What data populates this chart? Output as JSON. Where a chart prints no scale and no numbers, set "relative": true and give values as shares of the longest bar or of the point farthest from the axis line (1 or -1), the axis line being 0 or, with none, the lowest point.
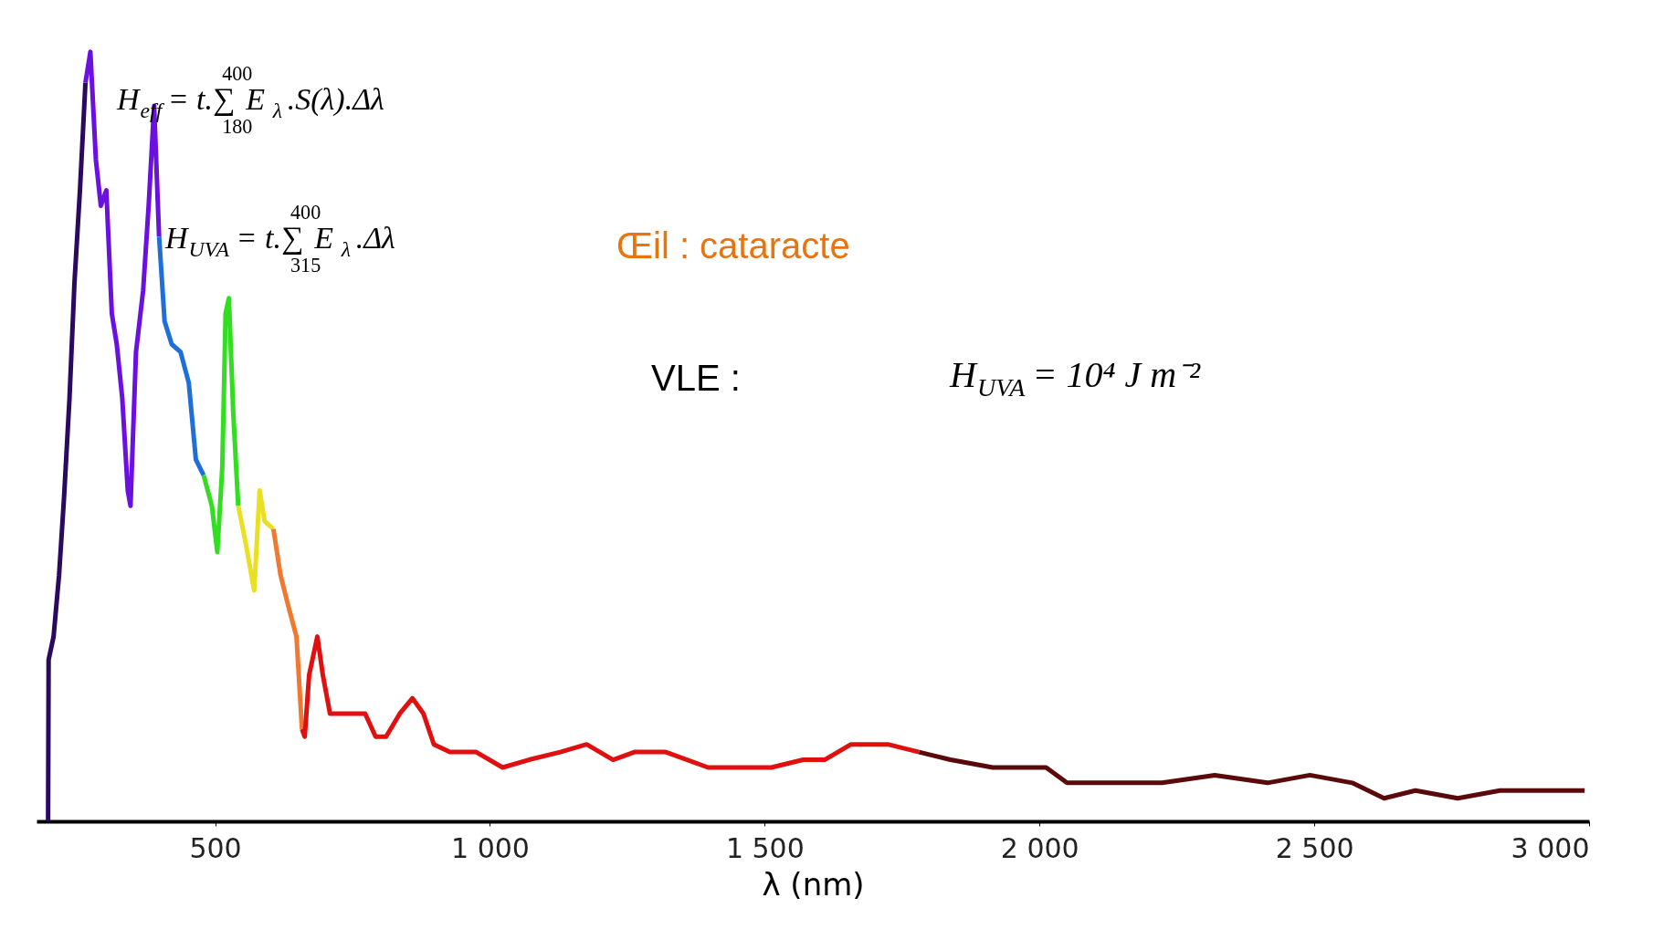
{
  "chart_data": {
    "type": "line",
    "relative": true,
    "xlabel": "λ (nm)",
    "grid": false,
    "xlim": [
      175,
      3000
    ],
    "xticks": [
      500,
      {
        "value": 1000,
        "label": "1 000"
      },
      {
        "value": 1500,
        "label": "1 500"
      },
      {
        "value": 2000,
        "label": "2 000"
      },
      {
        "value": 2500,
        "label": "2 500"
      },
      {
        "value": 3000,
        "label": "3 000"
      }
    ],
    "annotations": [
      "H$_{eff}$ = t.∑$_{180}$$^{400}$ E$_{λ}$.S(λ).Δλ",
      "H$_{UVA}$ = t.∑$_{315}$$^{400}$ E$_{λ}$.Δλ",
      "Œil : cataracte",
      "VLE  :",
      "H$_{UVA}$ = 10⁴ J m⁻²"
    ],
    "series": [
      {
        "color": "#2a0a5e",
        "x": [
          196,
          197,
          206,
          216,
          225,
          235,
          244,
          254,
          264
        ],
        "values": [
          0,
          0.21,
          0.24,
          0.32,
          0.42,
          0.55,
          0.7,
          0.82,
          0.96
        ]
      },
      {
        "color": "#6a10e0",
        "x": [
          264,
          273,
          283,
          292,
          302,
          312,
          321,
          331,
          341,
          346,
          356,
          369,
          379,
          389,
          398
        ],
        "values": [
          0.96,
          1.0,
          0.86,
          0.8,
          0.82,
          0.66,
          0.62,
          0.55,
          0.43,
          0.41,
          0.61,
          0.69,
          0.8,
          0.93,
          0.76
        ]
      },
      {
        "color": "#1e6fd9",
        "x": [
          398,
          408,
          421,
          437,
          452,
          465,
          479
        ],
        "values": [
          0.76,
          0.65,
          0.62,
          0.61,
          0.57,
          0.47,
          0.45
        ]
      },
      {
        "color": "#33dd22",
        "x": [
          479,
          494,
          504,
          513,
          519,
          525,
          533,
          542
        ],
        "values": [
          0.45,
          0.41,
          0.35,
          0.46,
          0.66,
          0.68,
          0.53,
          0.41
        ]
      },
      {
        "color": "#e8e020",
        "x": [
          542,
          556,
          571,
          581,
          590,
          606
        ],
        "values": [
          0.41,
          0.36,
          0.3,
          0.43,
          0.39,
          0.38
        ]
      },
      {
        "color": "#f07830",
        "x": [
          606,
          619,
          633,
          648,
          658
        ],
        "values": [
          0.38,
          0.32,
          0.28,
          0.24,
          0.12
        ]
      },
      {
        "color": "#e01010",
        "x": [
          658,
          663,
          671,
          686,
          696,
          709,
          734,
          773,
          792,
          811,
          836,
          859,
          879,
          898,
          927,
          975,
          1023,
          1071,
          1128,
          1176,
          1224,
          1263,
          1320,
          1397,
          1455,
          1512,
          1570,
          1609,
          1657,
          1724,
          1781
        ],
        "values": [
          0.12,
          0.11,
          0.19,
          0.24,
          0.19,
          0.14,
          0.14,
          0.14,
          0.11,
          0.11,
          0.14,
          0.16,
          0.14,
          0.1,
          0.09,
          0.09,
          0.07,
          0.08,
          0.09,
          0.1,
          0.08,
          0.09,
          0.09,
          0.07,
          0.07,
          0.07,
          0.08,
          0.08,
          0.1,
          0.1,
          0.09
        ]
      },
      {
        "color": "#5a0a0a",
        "x": [
          1781,
          1838,
          1915,
          2012,
          2050,
          2127,
          2223,
          2319,
          2415,
          2492,
          2569,
          2627,
          2684,
          2761,
          2838,
          2992
        ],
        "values": [
          0.09,
          0.08,
          0.07,
          0.07,
          0.05,
          0.05,
          0.05,
          0.06,
          0.05,
          0.06,
          0.05,
          0.03,
          0.04,
          0.03,
          0.04,
          0.04
        ]
      }
    ]
  }
}
